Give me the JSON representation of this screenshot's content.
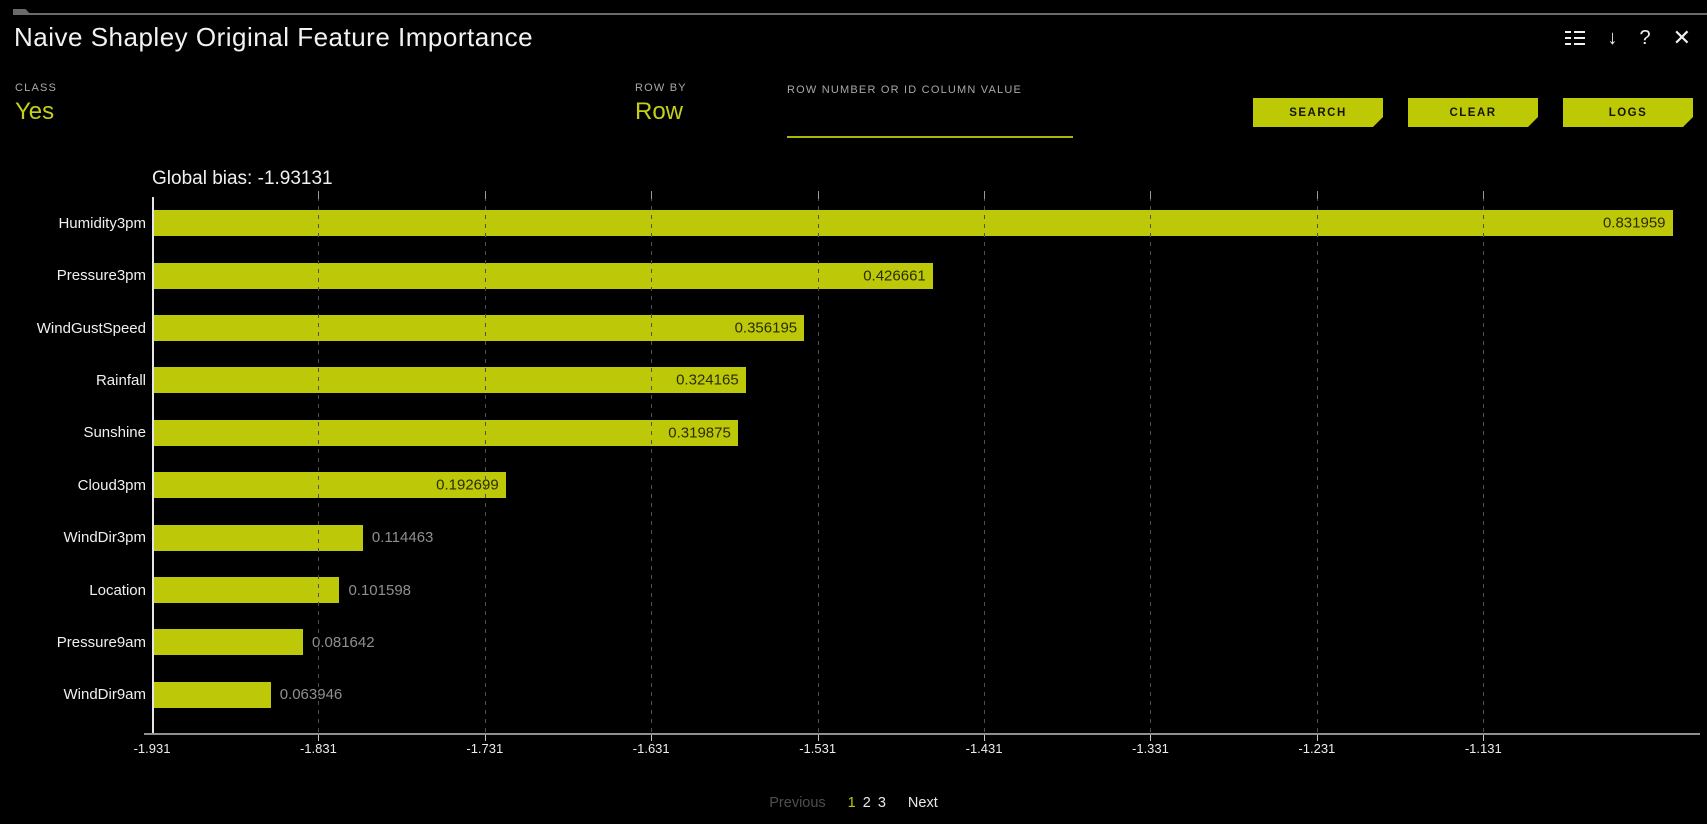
{
  "window": {
    "title": "Naive Shapley Original Feature Importance"
  },
  "header_icons": {
    "list_filter": "list-rows-icon",
    "download_glyph": "↓",
    "help_glyph": "?",
    "close_glyph": "✕"
  },
  "controls": {
    "class": {
      "label": "CLASS",
      "value": "Yes"
    },
    "row_by": {
      "label": "ROW BY",
      "value": "Row"
    },
    "row_input": {
      "label": "ROW NUMBER OR ID COLUMN VALUE",
      "value": "",
      "placeholder": ""
    },
    "buttons": {
      "search": "SEARCH",
      "clear": "CLEAR",
      "logs": "LOGS"
    }
  },
  "chart_data": {
    "type": "bar",
    "orientation": "horizontal",
    "title": "Global bias: -1.93131",
    "global_bias": -1.93131,
    "categories": [
      "Humidity3pm",
      "Pressure3pm",
      "WindGustSpeed",
      "Rainfall",
      "Sunshine",
      "Cloud3pm",
      "WindDir3pm",
      "Location",
      "Pressure9am",
      "WindDir9am"
    ],
    "values": [
      0.831959,
      0.426661,
      0.356195,
      0.324165,
      0.319875,
      0.192699,
      0.114463,
      0.101598,
      0.081642,
      0.063946
    ],
    "value_labels": [
      "0.831959",
      "0.426661",
      "0.356195",
      "0.324165",
      "0.319875",
      "0.192699",
      "0.114463",
      "0.101598",
      "0.081642",
      "0.063946"
    ],
    "x_ticks": [
      "-1.931",
      "-1.831",
      "-1.731",
      "-1.631",
      "-1.531",
      "-1.431",
      "-1.331",
      "-1.231",
      "-1.131"
    ],
    "axis_min": -1.931,
    "grid": "dashed-vertical",
    "legend": "none",
    "bar_color": "#bdc908",
    "xlabel": "",
    "ylabel": ""
  },
  "pagination": {
    "previous": "Previous",
    "pages": [
      "1",
      "2",
      "3"
    ],
    "active_page": "1",
    "next": "Next"
  },
  "colors": {
    "accent": "#bec906",
    "background": "#000000",
    "bar": "#bdc908",
    "text": "#f0f0f0",
    "muted_text": "#8f8f8f",
    "gridline": "#4f4f4f"
  }
}
